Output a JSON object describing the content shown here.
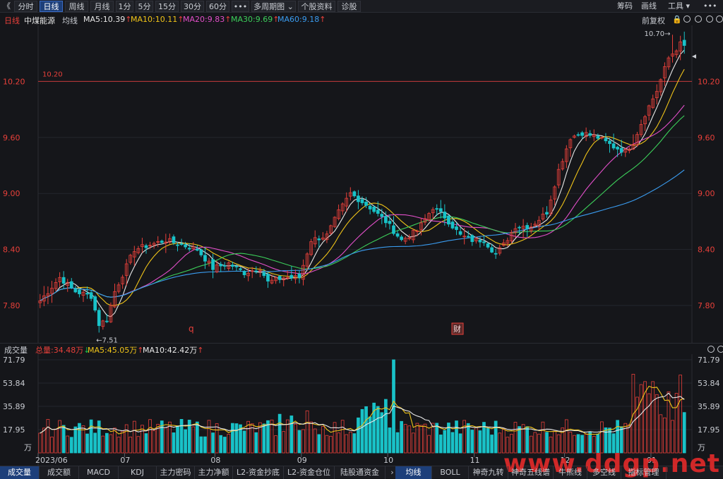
{
  "toolbar": {
    "back_glyph": "《",
    "buttons": [
      {
        "label": "分时",
        "active": false
      },
      {
        "label": "日线",
        "active": true
      },
      {
        "label": "周线",
        "active": false
      },
      {
        "label": "月线",
        "active": false
      },
      {
        "label": "1分",
        "active": false
      },
      {
        "label": "5分",
        "active": false
      },
      {
        "label": "15分",
        "active": false
      },
      {
        "label": "30分",
        "active": false
      },
      {
        "label": "60分",
        "active": false
      },
      {
        "label": "•••",
        "active": false
      },
      {
        "label": "多周期图 ⌄",
        "active": false
      },
      {
        "label": "个股资料",
        "active": false
      },
      {
        "label": "诊股",
        "active": false
      }
    ],
    "right": [
      "筹码",
      "画线",
      "工具 ▾"
    ]
  },
  "main_header": {
    "period": "日线",
    "stock": "中煤能源",
    "ma_title": "均线",
    "ma": [
      {
        "label": "MA5:10.39",
        "color": "#e8e8e8",
        "arrow": "↑"
      },
      {
        "label": "MA10:10.11",
        "color": "#f0c419",
        "arrow": "↑"
      },
      {
        "label": "MA20:9.83",
        "color": "#e24fc9",
        "arrow": "↑"
      },
      {
        "label": "MA30:9.69",
        "color": "#3ccf5a",
        "arrow": "↑"
      },
      {
        "label": "MA60:9.18",
        "color": "#3a9cf0",
        "arrow": "↑"
      }
    ],
    "right_label": "前复权"
  },
  "volume_header": {
    "title": "成交量",
    "total": "总量:34.48万",
    "total_arrow": "↓",
    "ma5": "MA5:45.05万",
    "ma5_arrow": "↑",
    "ma10": "MA10:42.42万",
    "ma10_arrow": "↑"
  },
  "bottom_tabs": [
    {
      "label": "成交量",
      "active": true
    },
    {
      "label": "成交额",
      "active": false
    },
    {
      "label": "MACD",
      "active": false
    },
    {
      "label": "KDJ",
      "active": false
    },
    {
      "label": "主力密码",
      "active": false
    },
    {
      "label": "主力净额",
      "active": false
    },
    {
      "label": "L2-资金抄底",
      "active": false
    },
    {
      "label": "L2-资金仓位",
      "active": false
    },
    {
      "label": "陆股通资金",
      "active": false
    },
    {
      "label": "›",
      "active": false
    },
    {
      "label": "均线",
      "active": true
    },
    {
      "label": "BOLL",
      "active": false
    },
    {
      "label": "神奇九转",
      "active": false
    },
    {
      "label": "神奇五线谱",
      "active": false
    },
    {
      "label": "牛熊线",
      "active": false
    },
    {
      "label": "多空线",
      "active": false
    },
    {
      "label": "指标管理",
      "active": false
    }
  ],
  "watermark": "www.ddgp.net",
  "colors": {
    "up": "#e8403a",
    "down": "#19c2c8",
    "bg": "#15161a"
  },
  "chart_data": [
    {
      "type": "candlestick",
      "y_ticks": [
        "10.20",
        "9.60",
        "9.00",
        "8.40",
        "7.80"
      ],
      "y_tick_values": [
        10.2,
        9.6,
        9.0,
        8.4,
        7.8
      ],
      "ylim": [
        7.4,
        10.8
      ],
      "x_labels": [
        "2023/06",
        "07",
        "08",
        "09",
        "10",
        "11",
        "12",
        "01"
      ],
      "reference_line": {
        "value": 10.2,
        "label": "10.20"
      },
      "annotations": {
        "high": "10.70→",
        "low": "←7.51",
        "event1": "q",
        "event2": "财"
      },
      "ma_series": [
        "MA5",
        "MA10",
        "MA20",
        "MA30",
        "MA60"
      ],
      "knots": [
        [
          0,
          7.85
        ],
        [
          5,
          8.1
        ],
        [
          9,
          7.95
        ],
        [
          13,
          7.9
        ],
        [
          15,
          7.6
        ],
        [
          17,
          7.65
        ],
        [
          19,
          7.95
        ],
        [
          24,
          8.4
        ],
        [
          28,
          8.45
        ],
        [
          32,
          8.5
        ],
        [
          36,
          8.45
        ],
        [
          40,
          8.4
        ],
        [
          44,
          8.2
        ],
        [
          48,
          8.25
        ],
        [
          52,
          8.15
        ],
        [
          56,
          8.2
        ],
        [
          58,
          8.05
        ],
        [
          62,
          8.1
        ],
        [
          66,
          8.1
        ],
        [
          69,
          8.5
        ],
        [
          73,
          8.55
        ],
        [
          76,
          8.8
        ],
        [
          79,
          9.0
        ],
        [
          84,
          8.85
        ],
        [
          88,
          8.7
        ],
        [
          92,
          8.5
        ],
        [
          96,
          8.6
        ],
        [
          100,
          8.85
        ],
        [
          103,
          8.75
        ],
        [
          107,
          8.55
        ],
        [
          110,
          8.5
        ],
        [
          113,
          8.5
        ],
        [
          116,
          8.35
        ],
        [
          118,
          8.45
        ],
        [
          121,
          8.65
        ],
        [
          125,
          8.65
        ],
        [
          129,
          8.8
        ],
        [
          132,
          9.25
        ],
        [
          135,
          9.6
        ],
        [
          138,
          9.65
        ],
        [
          142,
          9.6
        ],
        [
          146,
          9.5
        ],
        [
          149,
          9.45
        ],
        [
          151,
          9.55
        ],
        [
          154,
          9.85
        ],
        [
          157,
          10.1
        ],
        [
          160,
          10.45
        ],
        [
          163,
          10.6
        ],
        [
          165,
          10.55
        ]
      ],
      "low_value": 7.51,
      "high_value": 10.7
    },
    {
      "type": "bar",
      "title": "成交量",
      "y_ticks": [
        "71.79",
        "53.84",
        "35.89",
        "17.95"
      ],
      "y_tick_values": [
        71.79,
        53.84,
        35.89,
        17.95
      ],
      "unit": "万",
      "ylim": [
        0,
        71.79
      ],
      "x_labels": [
        "2023/06",
        "07",
        "08",
        "09",
        "10",
        "11",
        "12",
        "01"
      ],
      "series": [
        "总量",
        "MA5",
        "MA10"
      ]
    }
  ]
}
